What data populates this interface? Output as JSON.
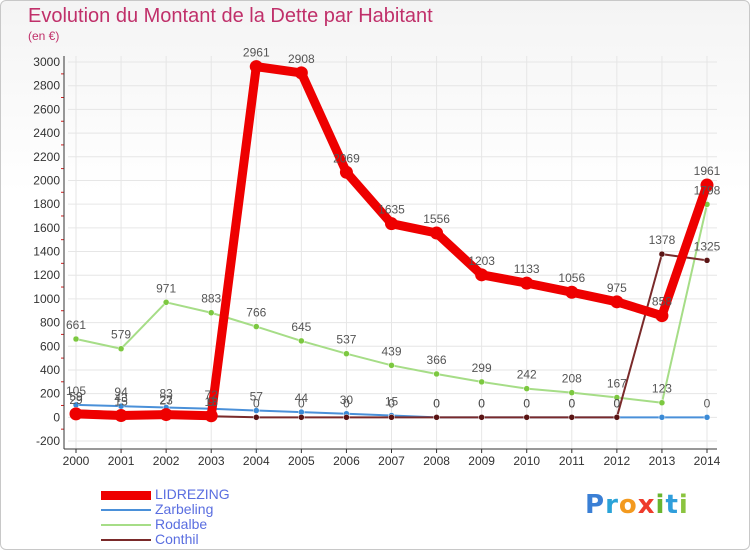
{
  "page": {
    "title": "Evolution du Montant de la Dette par Habitant",
    "unit": "(en €)",
    "brand": "Proxiti"
  },
  "colors": {
    "title": "#c0306a",
    "axis_text": "#333333",
    "grid": "#e6e6e6",
    "axis": "#333333",
    "label_text": "#555555",
    "legend_text": "#5a6ee0"
  },
  "chart_data": {
    "type": "line",
    "title": "Evolution du Montant de la Dette par Habitant",
    "ylabel": "(en €)",
    "xlabel": "",
    "x": [
      "2000",
      "2001",
      "2002",
      "2003",
      "2004",
      "2005",
      "2006",
      "2007",
      "2008",
      "2009",
      "2010",
      "2011",
      "2012",
      "2013",
      "2014"
    ],
    "ylim": [
      -200,
      3000
    ],
    "yticks": [
      -200,
      0,
      200,
      400,
      600,
      800,
      1000,
      1200,
      1400,
      1600,
      1800,
      2000,
      2200,
      2400,
      2600,
      2800,
      3000
    ],
    "legend_position": "bottom-left",
    "series": [
      {
        "name": "Zarbeling",
        "color": "#4a90d9",
        "marker": "#3a8ad6",
        "width": 2,
        "values": [
          105,
          94,
          83,
          72,
          57,
          44,
          30,
          15,
          0,
          0,
          0,
          0,
          0,
          0,
          0
        ],
        "labels": [
          "105",
          "94",
          "83",
          "72",
          "57",
          "44",
          "30",
          "15",
          "0",
          "0",
          "0",
          "0",
          "0",
          "",
          "0"
        ]
      },
      {
        "name": "Rodalbe",
        "color": "#a6dd87",
        "marker": "#7cc840",
        "width": 2,
        "values": [
          661,
          579,
          971,
          883,
          766,
          645,
          537,
          439,
          366,
          299,
          242,
          208,
          167,
          123,
          1798
        ],
        "labels": [
          "661",
          "579",
          "971",
          "883",
          "766",
          "645",
          "537",
          "439",
          "366",
          "299",
          "242",
          "208",
          "167",
          "123",
          "1798"
        ]
      },
      {
        "name": "Conthil",
        "color": "#7a2a2a",
        "marker": "#5a1414",
        "width": 2,
        "values": [
          59,
          43,
          27,
          9,
          0,
          0,
          0,
          0,
          0,
          0,
          0,
          0,
          0,
          1378,
          1325
        ],
        "labels": [
          "59",
          "43",
          "27",
          "9",
          "0",
          "0",
          "0",
          "0",
          "0",
          "0",
          "0",
          "0",
          "0",
          "1378",
          "1325"
        ]
      },
      {
        "name": "LIDREZING",
        "color": "#ee0000",
        "marker": "#ee0000",
        "width": 9,
        "values": [
          29,
          15,
          23,
          13,
          2961,
          2908,
          2069,
          1635,
          1556,
          1203,
          1133,
          1056,
          975,
          858,
          1961
        ],
        "labels": [
          "29",
          "15",
          "23",
          "13",
          "2961",
          "2908",
          "2069",
          "1635",
          "1556",
          "1203",
          "1133",
          "1056",
          "975",
          "858",
          "1961"
        ]
      }
    ]
  },
  "legend": [
    {
      "label": "LIDREZING",
      "color": "#ee0000",
      "width": 9
    },
    {
      "label": "Zarbeling",
      "color": "#4a90d9",
      "width": 2
    },
    {
      "label": "Rodalbe",
      "color": "#a6dd87",
      "width": 2
    },
    {
      "label": "Conthil",
      "color": "#7a2a2a",
      "width": 2
    }
  ],
  "logo": {
    "letters": [
      "P",
      "r",
      "o",
      "x",
      "i",
      "t",
      "i"
    ],
    "letter_colors": [
      "#3a7fd5",
      "#2aa3d8",
      "#f39a1f",
      "#ee3b2b",
      "#69b52f",
      "#2f9edb",
      "#8bc43f"
    ]
  }
}
